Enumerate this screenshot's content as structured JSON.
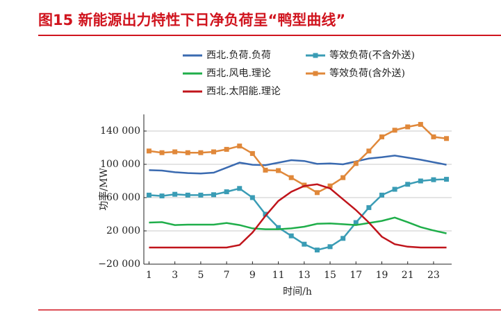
{
  "chart_data": {
    "type": "line",
    "title": "图15 新能源出力特性下日净负荷呈“鸭型曲线”",
    "x_label": "时间/h",
    "y_label": "功率/MW",
    "x": [
      1,
      2,
      3,
      4,
      5,
      6,
      7,
      8,
      9,
      10,
      11,
      12,
      13,
      14,
      15,
      16,
      17,
      18,
      19,
      20,
      21,
      22,
      23,
      24
    ],
    "xlim": [
      0.6,
      24.4
    ],
    "xticks": [
      1,
      3,
      5,
      7,
      9,
      11,
      13,
      15,
      17,
      19,
      21,
      23
    ],
    "ylim": [
      -20000,
      160000
    ],
    "yticks": [
      {
        "value": -20000,
        "label": "−20 000"
      },
      {
        "value": 20000,
        "label": "20 000"
      },
      {
        "value": 60000,
        "label": "60 000"
      },
      {
        "value": 100000,
        "label": "100 000"
      },
      {
        "value": 140000,
        "label": "140 000"
      }
    ],
    "grid": true,
    "series": [
      {
        "name": "西北.负荷.负荷",
        "color": "#3a6ab0",
        "marker": "none",
        "values": [
          93000,
          92500,
          90500,
          89500,
          89000,
          90000,
          96000,
          102000,
          99500,
          99000,
          102000,
          105000,
          104000,
          100500,
          101000,
          100000,
          103500,
          107000,
          108500,
          110500,
          108000,
          105500,
          102500,
          99500
        ]
      },
      {
        "name": "等效负荷(不含外送)",
        "color": "#3a9cb5",
        "marker": "square",
        "values": [
          63000,
          62000,
          64000,
          63000,
          63000,
          63500,
          67000,
          71000,
          60000,
          40000,
          24000,
          14000,
          4000,
          -3000,
          1000,
          11000,
          30000,
          48000,
          63000,
          70000,
          76000,
          80000,
          81500,
          82000
        ]
      },
      {
        "name": "西北.风电.理论",
        "color": "#1fae4a",
        "marker": "none",
        "values": [
          30000,
          30500,
          27000,
          27500,
          27500,
          27500,
          29500,
          27000,
          23000,
          22000,
          22000,
          23000,
          25000,
          28500,
          29000,
          28000,
          27000,
          29500,
          32000,
          36000,
          30500,
          24500,
          20500,
          17000
        ]
      },
      {
        "name": "等效负荷(含外送)",
        "color": "#e0883a",
        "marker": "square",
        "values": [
          116000,
          114000,
          115000,
          114000,
          114000,
          115000,
          118000,
          122000,
          113000,
          93000,
          92500,
          84000,
          75000,
          66000,
          74000,
          84000,
          101000,
          116000,
          133000,
          141000,
          145000,
          148000,
          133000,
          131000
        ]
      },
      {
        "name": "西北.太阳能.理论",
        "color": "#c0141b",
        "marker": "none",
        "values": [
          0,
          0,
          0,
          0,
          0,
          0,
          0,
          3000,
          18000,
          38000,
          56000,
          67000,
          74000,
          76000,
          71000,
          58000,
          45000,
          30000,
          13000,
          4000,
          1000,
          0,
          0,
          0
        ]
      }
    ]
  }
}
